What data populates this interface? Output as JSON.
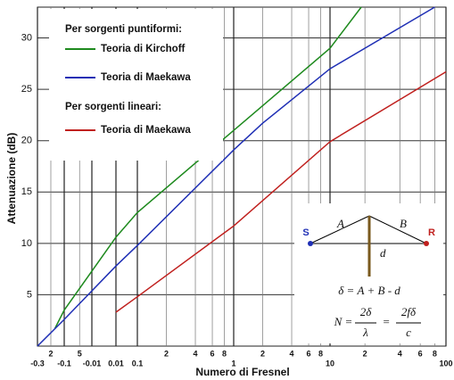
{
  "chart_data": {
    "type": "line",
    "y_label": "Attenuazione (dB)",
    "x_label": "Numero di Fresnel",
    "ylim": [
      0,
      33
    ],
    "yticks": [
      5,
      10,
      15,
      20,
      25,
      30
    ],
    "xlim": [
      -0.3,
      100
    ],
    "xticks": [
      -0.3,
      {
        "value": -0.2,
        "label": "2"
      },
      -0.1,
      {
        "value": -0.05,
        "label": "5"
      },
      -0.01,
      0.01,
      0.1,
      {
        "value": 0.2,
        "label": "2"
      },
      {
        "value": 0.4,
        "label": "4"
      },
      {
        "value": 0.6,
        "label": "6"
      },
      {
        "value": 0.8,
        "label": "8"
      },
      1,
      {
        "value": 2,
        "label": "2"
      },
      {
        "value": 4,
        "label": "4"
      },
      {
        "value": 6,
        "label": "6"
      },
      {
        "value": 8,
        "label": "8"
      },
      10,
      {
        "value": 20,
        "label": "2"
      },
      {
        "value": 40,
        "label": "4"
      },
      {
        "value": 60,
        "label": "6"
      },
      {
        "value": 80,
        "label": "8"
      },
      100
    ],
    "grid": true,
    "legend_headers": [
      "Per sorgenti puntiformi:",
      "Per sorgenti lineari:"
    ],
    "series": [
      {
        "name": "Teoria di Kirchoff",
        "color": "#1e8a1e",
        "x": [
          -0.17,
          -0.1,
          0.01,
          0.1,
          1,
          10,
          18.6
        ],
        "values": [
          1.7,
          3.5,
          10.6,
          13.0,
          21.0,
          29.0,
          33.0
        ]
      },
      {
        "name": "Teoria di Maekawa",
        "color": "#1f2fb5",
        "x": [
          -0.3,
          -0.1,
          0.01,
          0.1,
          1,
          2,
          10,
          80
        ],
        "values": [
          0,
          2.6,
          7.8,
          9.8,
          19.1,
          21.7,
          27.0,
          33.0
        ]
      },
      {
        "name": "Teoria di Maekawa",
        "color": "#c0201e",
        "x": [
          0.01,
          0.1,
          1,
          10,
          100
        ],
        "values": [
          3.3,
          4.8,
          11.7,
          19.9,
          26.7
        ]
      }
    ],
    "inset": {
      "source": "S",
      "receiver": "R",
      "path_a": "A",
      "path_b": "B",
      "distance": "d",
      "formula_1": "δ = A + B - d",
      "formula_2_lhs": "N =",
      "frac_1_num": "2δ",
      "frac_1_den": "λ",
      "equals": "=",
      "frac_2_num": "2fδ",
      "frac_2_den": "c"
    }
  }
}
